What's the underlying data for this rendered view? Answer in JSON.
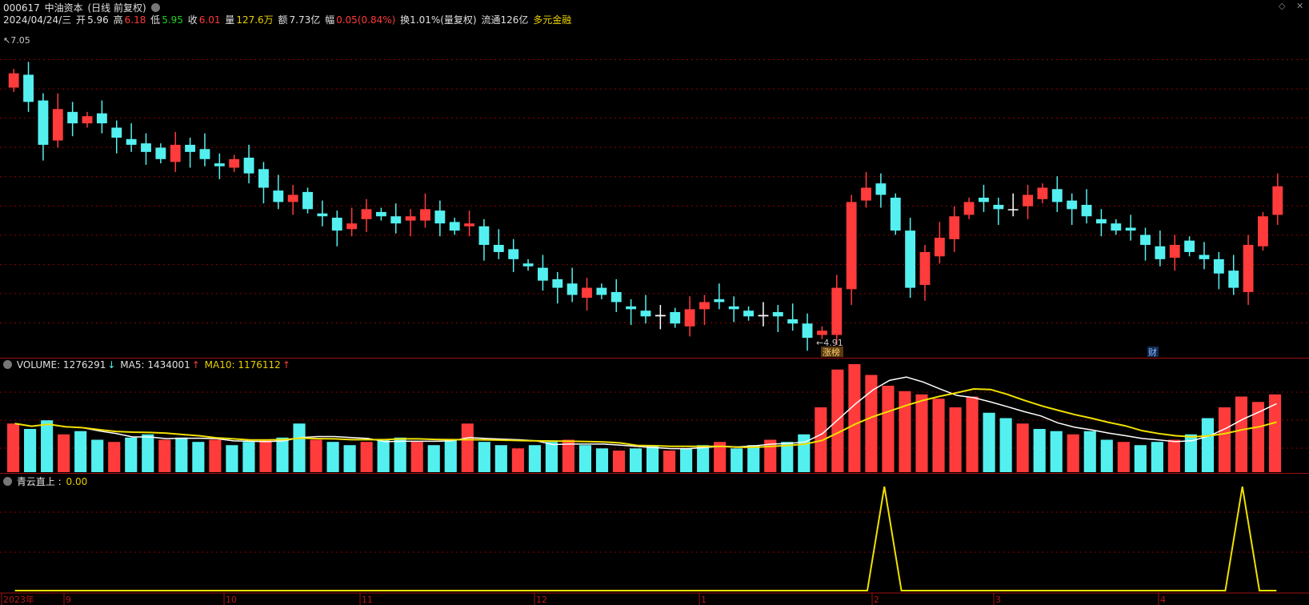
{
  "header": {
    "code": "000617",
    "name": "中油资本",
    "mode": "(日线 前复权)",
    "date": "2024/04/24/三",
    "open_label": "开",
    "open": "5.96",
    "high_label": "高",
    "high": "6.18",
    "low_label": "低",
    "low": "5.95",
    "close_label": "收",
    "close": "6.01",
    "vol_label": "量",
    "vol": "127.6万",
    "amt_label": "额",
    "amt": "7.73亿",
    "chg_label": "幅",
    "chg": "0.05(0.84%)",
    "turnover": "换1.01%(量复权)",
    "float": "流通126亿",
    "concept": "多元金融"
  },
  "volume_header": {
    "name": "VOLUME: 1276291",
    "ma5": "MA5: 1434001",
    "ma10": "MA10: 1176112",
    "arrow_down": "↓",
    "arrow_up": "↑"
  },
  "indicator_header": {
    "name": "青云直上 :",
    "value": "0.00"
  },
  "price_labels": {
    "high_mark": "7.05",
    "low_mark": "4.91",
    "tag_zhangbang": "涨榜",
    "tag_cai": "财"
  },
  "x_axis": [
    "2023年",
    "9",
    "10",
    "11",
    "12",
    "1",
    "2",
    "3",
    "4"
  ],
  "colors": {
    "up": "#ff3b3b",
    "down": "#54f0f0",
    "doji": "#ffffff",
    "ma5": "#ffffff",
    "ma10": "#f0e000",
    "indicator": "#f0e000",
    "grid": "#8b0000"
  },
  "chart_data": [
    {
      "type": "candlestick",
      "title": "000617 中油资本 (日线 前复权)",
      "ylim": [
        4.85,
        7.1
      ],
      "annotations": [
        "7.05",
        "4.91",
        "涨榜",
        "财"
      ],
      "close_series": [
        6.8,
        6.6,
        6.3,
        6.55,
        6.45,
        6.5,
        6.45,
        6.35,
        6.3,
        6.25,
        6.2,
        6.3,
        6.25,
        6.2,
        6.15,
        6.2,
        6.1,
        6.0,
        5.9,
        5.95,
        5.85,
        5.8,
        5.7,
        5.75,
        5.85,
        5.8,
        5.75,
        5.8,
        5.85,
        5.75,
        5.7,
        5.75,
        5.6,
        5.55,
        5.5,
        5.45,
        5.35,
        5.3,
        5.25,
        5.3,
        5.25,
        5.2,
        5.15,
        5.1,
        5.1,
        5.05,
        5.15,
        5.2,
        5.2,
        5.15,
        5.1,
        5.1,
        5.1,
        5.05,
        4.95,
        5.0,
        5.3,
        5.9,
        6.0,
        5.95,
        5.7,
        5.3,
        5.55,
        5.65,
        5.8,
        5.9,
        5.9,
        5.85,
        5.85,
        5.95,
        6.0,
        5.9,
        5.85,
        5.8,
        5.75,
        5.7,
        5.7,
        5.6,
        5.5,
        5.6,
        5.55,
        5.5,
        5.4,
        5.3,
        5.6,
        5.8,
        6.01
      ]
    },
    {
      "type": "bar",
      "title": "VOLUME",
      "series_names": [
        "VOLUME",
        "MA5",
        "MA10"
      ],
      "values_index": [
        45,
        40,
        48,
        35,
        38,
        30,
        28,
        32,
        35,
        30,
        32,
        28,
        30,
        25,
        28,
        30,
        32,
        45,
        30,
        28,
        25,
        28,
        30,
        32,
        28,
        25,
        30,
        45,
        28,
        25,
        22,
        25,
        28,
        30,
        25,
        22,
        20,
        22,
        25,
        20,
        22,
        25,
        28,
        22,
        25,
        30,
        28,
        35,
        60,
        95,
        100,
        90,
        80,
        75,
        72,
        68,
        60,
        70,
        55,
        50,
        45,
        40,
        38,
        35,
        38,
        30,
        28,
        25,
        28,
        30,
        35,
        50,
        60,
        70,
        65,
        72
      ]
    },
    {
      "type": "line",
      "title": "青云直上",
      "values": [
        0,
        0,
        0,
        0,
        0,
        0,
        0,
        0,
        0,
        0,
        0,
        0,
        0,
        0,
        0,
        0,
        0,
        0,
        0,
        0,
        0,
        0,
        0,
        0,
        0,
        0,
        0,
        0,
        0,
        0,
        0,
        0,
        0,
        0,
        0,
        0,
        0,
        0,
        0,
        0,
        0,
        0,
        0,
        0,
        0,
        0,
        0,
        0,
        0,
        0,
        0,
        1,
        0,
        0,
        0,
        0,
        0,
        0,
        0,
        0,
        0,
        0,
        0,
        0,
        0,
        0,
        0,
        0,
        0,
        0,
        0,
        0,
        1,
        0,
        0
      ],
      "current": 0.0
    }
  ]
}
